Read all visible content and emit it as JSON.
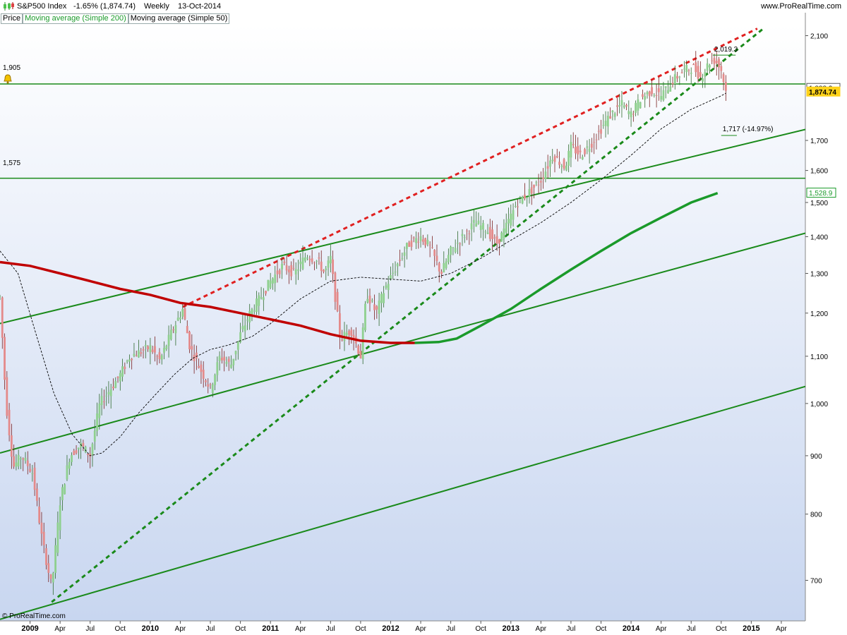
{
  "header": {
    "instrument": "S&P500 Index",
    "change": "-1.65% (1,874.74)",
    "period": "Weekly",
    "date": "13-Oct-2014",
    "site": "www.ProRealTime.com"
  },
  "legend": {
    "price": "Price",
    "ma200": "Moving average (Simple 200)",
    "ma50": "Moving average (Simple 50)"
  },
  "footer": {
    "copyright": "© ProRealTime.com"
  },
  "colors": {
    "background_top": "#ffffff",
    "background_bottom": "#c8d6f0",
    "up_candle": "#8fd08f",
    "down_candle": "#e48a8a",
    "ma200_below": "#c00000",
    "ma200_above": "#1a9a2a",
    "trend_green": "#1a8a1a",
    "trend_red": "#e02020",
    "label_yellow": "#ffd21a",
    "legend_green": "#1a9a2a"
  },
  "chart_data": {
    "type": "line",
    "scale": "log",
    "x_ticks": [
      "2009",
      "Apr",
      "Jul",
      "Oct",
      "2010",
      "Apr",
      "Jul",
      "Oct",
      "2011",
      "Apr",
      "Jul",
      "Oct",
      "2012",
      "Apr",
      "Jul",
      "Oct",
      "2013",
      "Apr",
      "Jul",
      "Oct",
      "2014",
      "Apr",
      "Jul",
      "Oct",
      "2015",
      "Apr"
    ],
    "x_tick_years": [
      2009.0,
      2009.25,
      2009.5,
      2009.75,
      2010.0,
      2010.25,
      2010.5,
      2010.75,
      2011.0,
      2011.25,
      2011.5,
      2011.75,
      2012.0,
      2012.25,
      2012.5,
      2012.75,
      2013.0,
      2013.25,
      2013.5,
      2013.75,
      2014.0,
      2014.25,
      2014.5,
      2014.75,
      2015.0,
      2015.25
    ],
    "y_ticks": [
      "2,100",
      "1,700",
      "1,600",
      "1,500",
      "1,400",
      "1,300",
      "1,200",
      "1,100",
      "1,000",
      "900",
      "800",
      "700"
    ],
    "y_tick_values": [
      2100,
      1700,
      1600,
      1500,
      1400,
      1300,
      1200,
      1100,
      1000,
      900,
      800,
      700
    ],
    "ylim": [
      645,
      2150
    ],
    "xlim": [
      2008.75,
      2015.45
    ],
    "price_path": [
      [
        2008.75,
        1240
      ],
      [
        2008.8,
        1000
      ],
      [
        2008.86,
        880
      ],
      [
        2008.93,
        900
      ],
      [
        2009.02,
        870
      ],
      [
        2009.1,
        760
      ],
      [
        2009.18,
        690
      ],
      [
        2009.25,
        820
      ],
      [
        2009.33,
        900
      ],
      [
        2009.42,
        920
      ],
      [
        2009.5,
        900
      ],
      [
        2009.58,
        1000
      ],
      [
        2009.67,
        1030
      ],
      [
        2009.75,
        1060
      ],
      [
        2009.83,
        1100
      ],
      [
        2009.92,
        1110
      ],
      [
        2010.0,
        1120
      ],
      [
        2010.08,
        1090
      ],
      [
        2010.17,
        1150
      ],
      [
        2010.27,
        1210
      ],
      [
        2010.33,
        1120
      ],
      [
        2010.42,
        1070
      ],
      [
        2010.5,
        1030
      ],
      [
        2010.58,
        1100
      ],
      [
        2010.67,
        1080
      ],
      [
        2010.75,
        1150
      ],
      [
        2010.83,
        1200
      ],
      [
        2010.92,
        1240
      ],
      [
        2011.0,
        1280
      ],
      [
        2011.1,
        1320
      ],
      [
        2011.2,
        1300
      ],
      [
        2011.3,
        1350
      ],
      [
        2011.4,
        1330
      ],
      [
        2011.45,
        1300
      ],
      [
        2011.5,
        1340
      ],
      [
        2011.58,
        1140
      ],
      [
        2011.67,
        1160
      ],
      [
        2011.75,
        1100
      ],
      [
        2011.8,
        1250
      ],
      [
        2011.88,
        1200
      ],
      [
        2011.95,
        1260
      ],
      [
        2012.05,
        1320
      ],
      [
        2012.15,
        1380
      ],
      [
        2012.25,
        1400
      ],
      [
        2012.33,
        1370
      ],
      [
        2012.42,
        1300
      ],
      [
        2012.5,
        1360
      ],
      [
        2012.6,
        1400
      ],
      [
        2012.7,
        1440
      ],
      [
        2012.8,
        1420
      ],
      [
        2012.88,
        1380
      ],
      [
        2012.95,
        1420
      ],
      [
        2013.05,
        1500
      ],
      [
        2013.15,
        1530
      ],
      [
        2013.25,
        1570
      ],
      [
        2013.35,
        1650
      ],
      [
        2013.45,
        1610
      ],
      [
        2013.5,
        1680
      ],
      [
        2013.58,
        1650
      ],
      [
        2013.67,
        1690
      ],
      [
        2013.75,
        1740
      ],
      [
        2013.83,
        1790
      ],
      [
        2013.92,
        1830
      ],
      [
        2014.0,
        1790
      ],
      [
        2014.08,
        1850
      ],
      [
        2014.17,
        1880
      ],
      [
        2014.25,
        1860
      ],
      [
        2014.35,
        1920
      ],
      [
        2014.45,
        1960
      ],
      [
        2014.52,
        1970
      ],
      [
        2014.58,
        1930
      ],
      [
        2014.65,
        1990
      ],
      [
        2014.7,
        2000
      ],
      [
        2014.75,
        1960
      ],
      [
        2014.79,
        1875
      ]
    ],
    "ma200_path": [
      [
        2008.75,
        1330
      ],
      [
        2009.0,
        1320
      ],
      [
        2009.25,
        1300
      ],
      [
        2009.5,
        1280
      ],
      [
        2009.75,
        1260
      ],
      [
        2010.0,
        1245
      ],
      [
        2010.25,
        1225
      ],
      [
        2010.5,
        1215
      ],
      [
        2010.75,
        1200
      ],
      [
        2011.0,
        1185
      ],
      [
        2011.25,
        1170
      ],
      [
        2011.5,
        1150
      ],
      [
        2011.75,
        1135
      ],
      [
        2012.0,
        1130
      ],
      [
        2012.2,
        1130
      ],
      [
        2012.4,
        1132
      ],
      [
        2012.55,
        1140
      ],
      [
        2012.75,
        1170
      ],
      [
        2013.0,
        1210
      ],
      [
        2013.25,
        1260
      ],
      [
        2013.5,
        1310
      ],
      [
        2013.75,
        1360
      ],
      [
        2014.0,
        1410
      ],
      [
        2014.25,
        1455
      ],
      [
        2014.5,
        1500
      ],
      [
        2014.72,
        1528.9
      ]
    ],
    "ma200_color_change_year": 2012.3,
    "ma50_path": [
      [
        2008.75,
        1360
      ],
      [
        2008.9,
        1300
      ],
      [
        2009.05,
        1150
      ],
      [
        2009.2,
        1020
      ],
      [
        2009.35,
        940
      ],
      [
        2009.5,
        900
      ],
      [
        2009.6,
        905
      ],
      [
        2009.75,
        935
      ],
      [
        2009.9,
        980
      ],
      [
        2010.05,
        1020
      ],
      [
        2010.2,
        1060
      ],
      [
        2010.35,
        1095
      ],
      [
        2010.5,
        1115
      ],
      [
        2010.65,
        1125
      ],
      [
        2010.85,
        1145
      ],
      [
        2011.0,
        1175
      ],
      [
        2011.25,
        1235
      ],
      [
        2011.5,
        1280
      ],
      [
        2011.75,
        1290
      ],
      [
        2012.0,
        1285
      ],
      [
        2012.25,
        1280
      ],
      [
        2012.5,
        1300
      ],
      [
        2012.75,
        1340
      ],
      [
        2013.0,
        1390
      ],
      [
        2013.25,
        1440
      ],
      [
        2013.5,
        1500
      ],
      [
        2013.75,
        1570
      ],
      [
        2014.0,
        1650
      ],
      [
        2014.25,
        1740
      ],
      [
        2014.5,
        1810
      ],
      [
        2014.75,
        1860
      ],
      [
        2014.79,
        1870
      ]
    ],
    "trend_lines": [
      {
        "style": "solid",
        "color": "green",
        "from": [
          2008.75,
          647
        ],
        "to": [
          2015.45,
          1035
        ]
      },
      {
        "style": "solid",
        "color": "green",
        "from": [
          2008.75,
          905
        ],
        "to": [
          2015.45,
          1410
        ]
      },
      {
        "style": "solid",
        "color": "green",
        "from": [
          2008.75,
          1175
        ],
        "to": [
          2015.45,
          1738
        ]
      },
      {
        "style": "dashed",
        "color": "green",
        "from": [
          2009.18,
          670
        ],
        "to": [
          2015.1,
          2130
        ]
      },
      {
        "style": "dashed",
        "color": "red",
        "from": [
          2010.27,
          1215
        ],
        "to": [
          2015.05,
          2130
        ]
      }
    ],
    "horizontal_levels": [
      {
        "value": 1905,
        "label": "1,905"
      },
      {
        "value": 1575,
        "label": "1,575"
      }
    ],
    "target": {
      "label": "1,717 (-14.97%)",
      "value": 1717,
      "from_year": 2014.75,
      "to_year": 2014.88
    },
    "top_marker": {
      "label": "2,019.3",
      "value": 2019.3,
      "from_year": 2014.68,
      "to_year": 2014.87
    },
    "price_tags": [
      {
        "label": "1,888.2",
        "value": 1888.2,
        "style": "boxed"
      },
      {
        "label": "1,874.74",
        "value": 1874.74,
        "style": "yellow"
      },
      {
        "label": "1,528.9",
        "value": 1528.9,
        "style": "green"
      }
    ]
  }
}
